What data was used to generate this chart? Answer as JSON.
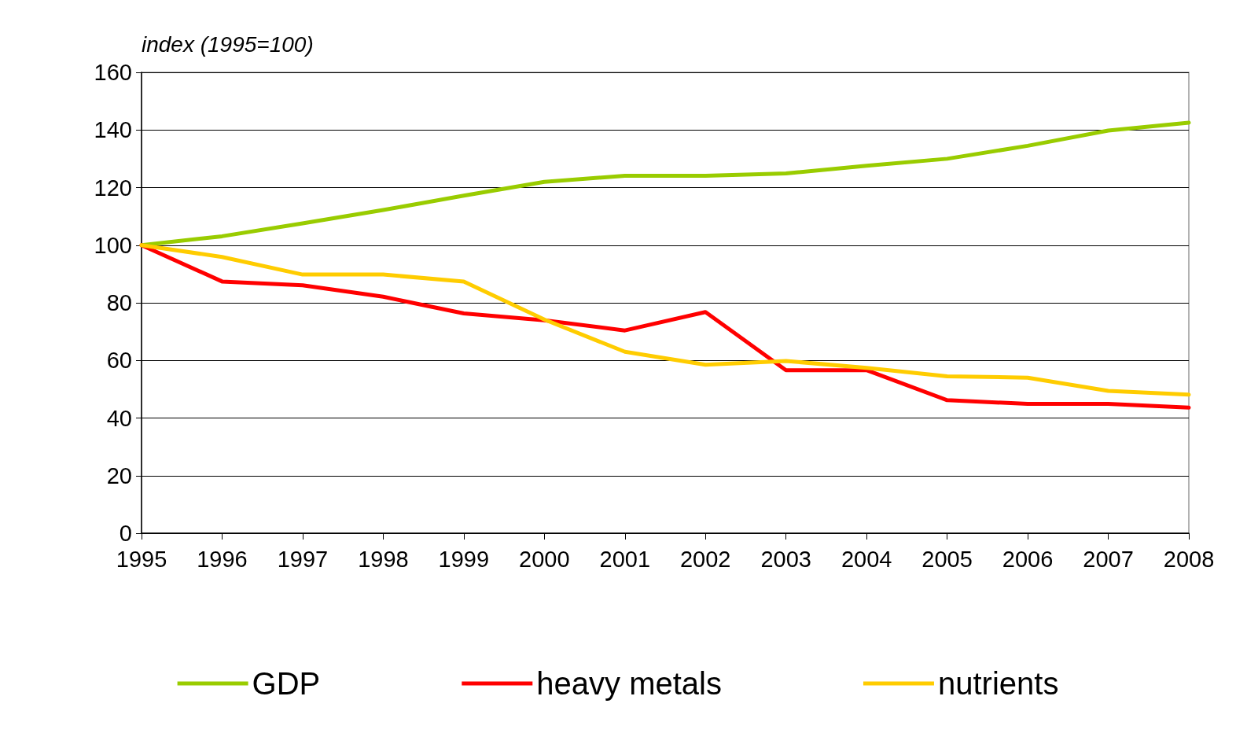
{
  "chart_data": {
    "type": "line",
    "ylabel": "index (1995=100)",
    "categories": [
      "1995",
      "1996",
      "1997",
      "1998",
      "1999",
      "2000",
      "2001",
      "2002",
      "2003",
      "2004",
      "2005",
      "2006",
      "2007",
      "2008"
    ],
    "series": [
      {
        "name": "GDP",
        "color": "#99cc00",
        "values": [
          100,
          103.1,
          107.6,
          112.2,
          117.2,
          122,
          124.1,
          124.1,
          124.9,
          127.6,
          130,
          134.5,
          139.8,
          142.5
        ]
      },
      {
        "name": "heavy metals",
        "color": "#ff0000",
        "values": [
          100,
          87.4,
          86.1,
          82.1,
          76.3,
          73.9,
          70.4,
          76.8,
          56.6,
          56.6,
          46.2,
          44.9,
          44.9,
          43.6
        ]
      },
      {
        "name": "nutrients",
        "color": "#ffcc00",
        "values": [
          100,
          95.9,
          89.8,
          89.8,
          87.4,
          74.2,
          63,
          58.5,
          59.8,
          57.4,
          54.5,
          54,
          49.4,
          48.1
        ]
      }
    ],
    "ylim": [
      0,
      160
    ],
    "yticks": [
      0,
      20,
      40,
      60,
      80,
      100,
      120,
      140,
      160
    ],
    "grid": "y",
    "legend": "bottom",
    "marker": "none",
    "line_style": "solid"
  }
}
